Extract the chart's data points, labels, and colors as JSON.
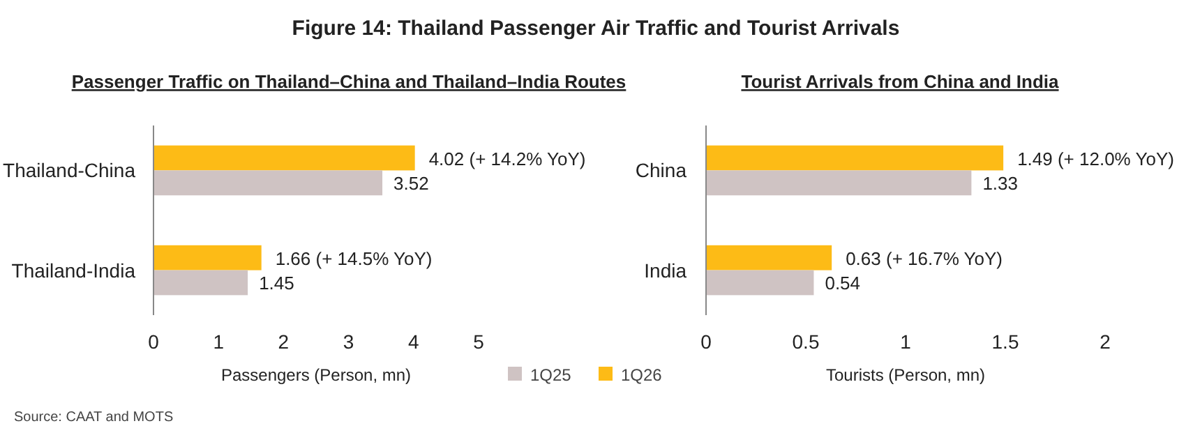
{
  "chart_data": [
    {
      "type": "bar",
      "orientation": "horizontal",
      "title": "Figure 14: Thailand Passenger Air Traffic and Tourist Arrivals",
      "subtitle": "Passenger Traffic on Thailand–China and Thailand–India Routes",
      "xlabel": "Passengers (Person, mn)",
      "categories": [
        "Thailand-China",
        "Thailand-India"
      ],
      "series": [
        {
          "name": "1Q25",
          "color": "#cfc3c3",
          "values": [
            3.52,
            1.45
          ],
          "value_labels": [
            "3.52",
            "1.45"
          ]
        },
        {
          "name": "1Q26",
          "color": "#fdbb16",
          "values": [
            4.02,
            1.66
          ],
          "value_labels": [
            "4.02 (+ 14.2% YoY)",
            "1.66 (+ 14.5% YoY)"
          ]
        }
      ],
      "xlim": [
        0,
        5
      ],
      "xticks": [
        0,
        1,
        2,
        3,
        4,
        5
      ],
      "grid": false,
      "legend": "bottom right",
      "annotations": [
        "Source: CAAT and MOTS"
      ]
    },
    {
      "type": "bar",
      "orientation": "horizontal",
      "subtitle": "Tourist Arrivals from China and India",
      "xlabel": "Tourists (Person, mn)",
      "categories": [
        "China",
        "India"
      ],
      "series": [
        {
          "color": "#cfc3c3",
          "values": [
            1.33,
            0.54
          ],
          "value_labels": [
            "1.33",
            "0.54"
          ]
        },
        {
          "color": "#fdbb16",
          "values": [
            1.49,
            0.63
          ],
          "value_labels": [
            "1.49 (+ 12.0% YoY)",
            "0.63 (+ 16.7% YoY)"
          ]
        }
      ],
      "xlim": [
        0,
        2
      ],
      "xticks": [
        0,
        0.5,
        1,
        1.5,
        2
      ],
      "grid": false
    }
  ]
}
